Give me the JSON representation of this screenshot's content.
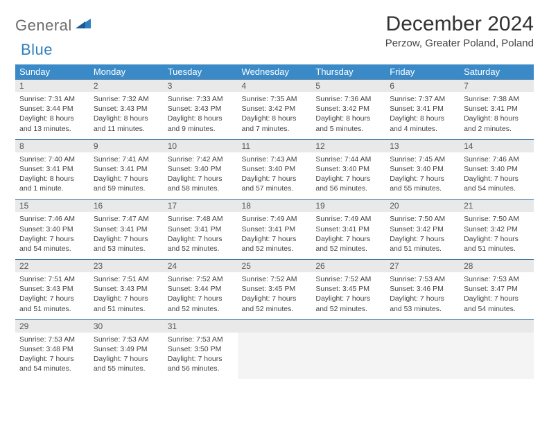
{
  "brand": {
    "part1": "General",
    "part2": "Blue"
  },
  "title": "December 2024",
  "location": "Perzow, Greater Poland, Poland",
  "colors": {
    "header_bg": "#3a8ac8",
    "header_text": "#ffffff",
    "daynum_bg": "#e9e9e9",
    "rule_color": "#3a6ea0",
    "body_text": "#444444",
    "logo_gray": "#6b6b6b",
    "logo_blue": "#2f7fc0",
    "page_bg": "#ffffff"
  },
  "dow": [
    "Sunday",
    "Monday",
    "Tuesday",
    "Wednesday",
    "Thursday",
    "Friday",
    "Saturday"
  ],
  "weeks": [
    [
      {
        "n": "1",
        "sr": "7:31 AM",
        "ss": "3:44 PM",
        "dl": "8 hours and 13 minutes."
      },
      {
        "n": "2",
        "sr": "7:32 AM",
        "ss": "3:43 PM",
        "dl": "8 hours and 11 minutes."
      },
      {
        "n": "3",
        "sr": "7:33 AM",
        "ss": "3:43 PM",
        "dl": "8 hours and 9 minutes."
      },
      {
        "n": "4",
        "sr": "7:35 AM",
        "ss": "3:42 PM",
        "dl": "8 hours and 7 minutes."
      },
      {
        "n": "5",
        "sr": "7:36 AM",
        "ss": "3:42 PM",
        "dl": "8 hours and 5 minutes."
      },
      {
        "n": "6",
        "sr": "7:37 AM",
        "ss": "3:41 PM",
        "dl": "8 hours and 4 minutes."
      },
      {
        "n": "7",
        "sr": "7:38 AM",
        "ss": "3:41 PM",
        "dl": "8 hours and 2 minutes."
      }
    ],
    [
      {
        "n": "8",
        "sr": "7:40 AM",
        "ss": "3:41 PM",
        "dl": "8 hours and 1 minute."
      },
      {
        "n": "9",
        "sr": "7:41 AM",
        "ss": "3:41 PM",
        "dl": "7 hours and 59 minutes."
      },
      {
        "n": "10",
        "sr": "7:42 AM",
        "ss": "3:40 PM",
        "dl": "7 hours and 58 minutes."
      },
      {
        "n": "11",
        "sr": "7:43 AM",
        "ss": "3:40 PM",
        "dl": "7 hours and 57 minutes."
      },
      {
        "n": "12",
        "sr": "7:44 AM",
        "ss": "3:40 PM",
        "dl": "7 hours and 56 minutes."
      },
      {
        "n": "13",
        "sr": "7:45 AM",
        "ss": "3:40 PM",
        "dl": "7 hours and 55 minutes."
      },
      {
        "n": "14",
        "sr": "7:46 AM",
        "ss": "3:40 PM",
        "dl": "7 hours and 54 minutes."
      }
    ],
    [
      {
        "n": "15",
        "sr": "7:46 AM",
        "ss": "3:40 PM",
        "dl": "7 hours and 54 minutes."
      },
      {
        "n": "16",
        "sr": "7:47 AM",
        "ss": "3:41 PM",
        "dl": "7 hours and 53 minutes."
      },
      {
        "n": "17",
        "sr": "7:48 AM",
        "ss": "3:41 PM",
        "dl": "7 hours and 52 minutes."
      },
      {
        "n": "18",
        "sr": "7:49 AM",
        "ss": "3:41 PM",
        "dl": "7 hours and 52 minutes."
      },
      {
        "n": "19",
        "sr": "7:49 AM",
        "ss": "3:41 PM",
        "dl": "7 hours and 52 minutes."
      },
      {
        "n": "20",
        "sr": "7:50 AM",
        "ss": "3:42 PM",
        "dl": "7 hours and 51 minutes."
      },
      {
        "n": "21",
        "sr": "7:50 AM",
        "ss": "3:42 PM",
        "dl": "7 hours and 51 minutes."
      }
    ],
    [
      {
        "n": "22",
        "sr": "7:51 AM",
        "ss": "3:43 PM",
        "dl": "7 hours and 51 minutes."
      },
      {
        "n": "23",
        "sr": "7:51 AM",
        "ss": "3:43 PM",
        "dl": "7 hours and 51 minutes."
      },
      {
        "n": "24",
        "sr": "7:52 AM",
        "ss": "3:44 PM",
        "dl": "7 hours and 52 minutes."
      },
      {
        "n": "25",
        "sr": "7:52 AM",
        "ss": "3:45 PM",
        "dl": "7 hours and 52 minutes."
      },
      {
        "n": "26",
        "sr": "7:52 AM",
        "ss": "3:45 PM",
        "dl": "7 hours and 52 minutes."
      },
      {
        "n": "27",
        "sr": "7:53 AM",
        "ss": "3:46 PM",
        "dl": "7 hours and 53 minutes."
      },
      {
        "n": "28",
        "sr": "7:53 AM",
        "ss": "3:47 PM",
        "dl": "7 hours and 54 minutes."
      }
    ],
    [
      {
        "n": "29",
        "sr": "7:53 AM",
        "ss": "3:48 PM",
        "dl": "7 hours and 54 minutes."
      },
      {
        "n": "30",
        "sr": "7:53 AM",
        "ss": "3:49 PM",
        "dl": "7 hours and 55 minutes."
      },
      {
        "n": "31",
        "sr": "7:53 AM",
        "ss": "3:50 PM",
        "dl": "7 hours and 56 minutes."
      },
      null,
      null,
      null,
      null
    ]
  ],
  "labels": {
    "sunrise": "Sunrise: ",
    "sunset": "Sunset: ",
    "daylight": "Daylight: "
  }
}
